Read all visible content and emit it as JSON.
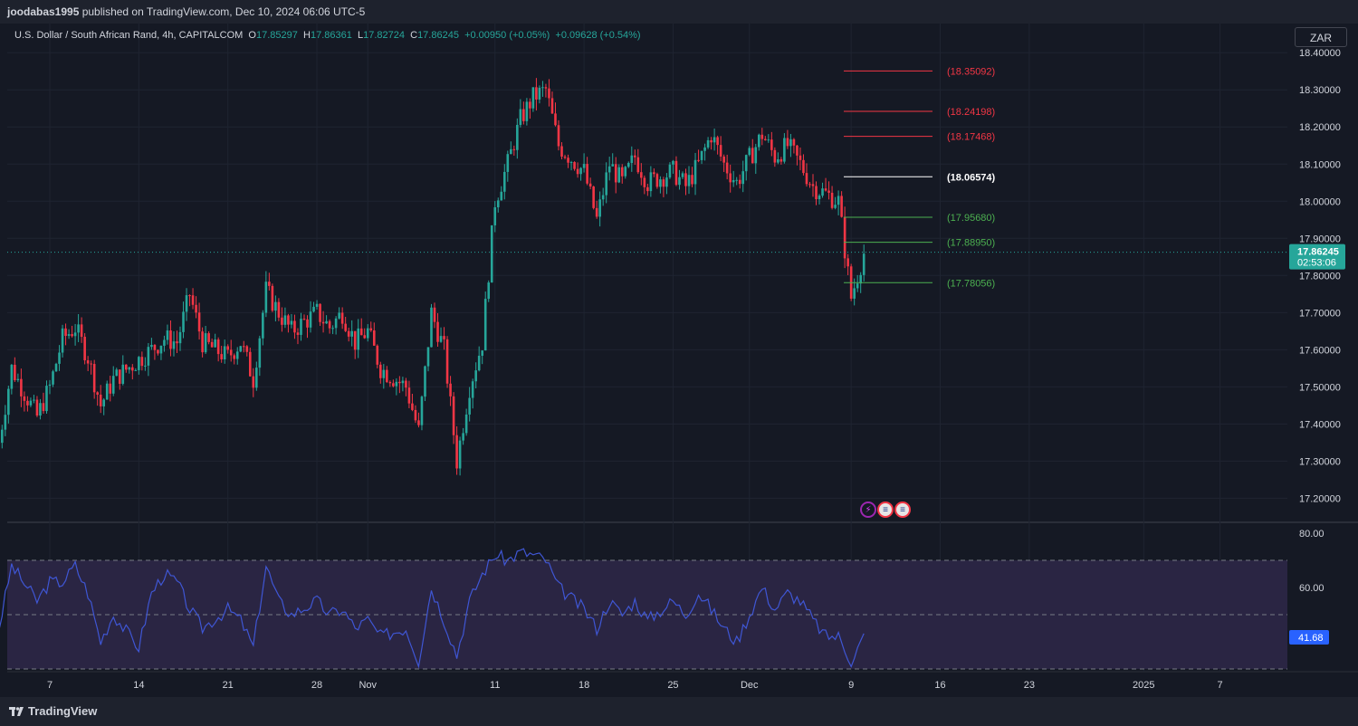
{
  "header": {
    "publisher": "joodabas1995",
    "published_text": " published on TradingView.com, Dec 10, 2024 06:06 UTC-5"
  },
  "legend": {
    "symbol": "U.S. Dollar / South African Rand, 4h, CAPITALCOM",
    "o_label": "O",
    "o_value": "17.85297",
    "h_label": "H",
    "h_value": "17.86361",
    "l_label": "L",
    "l_value": "17.82724",
    "c_label": "C",
    "c_value": "17.86245",
    "change": "+0.00950 (+0.05%)",
    "change_day": "+0.09628 (+0.54%)"
  },
  "currency_button": "ZAR",
  "footer": {
    "brand": "TradingView"
  },
  "colors": {
    "background": "#151924",
    "up": "#26a69a",
    "down": "#f23645",
    "rsi_line": "#3f56d4",
    "rsi_band": "#2a2543",
    "resistance": "#f23645",
    "support": "#4caf50",
    "pivot": "#ffffff",
    "price_tag": "#26a69a"
  },
  "chart_data": [
    {
      "type": "candlestick",
      "title": "U.S. Dollar / South African Rand, 4h, CAPITALCOM",
      "ylim": [
        17.14,
        18.42
      ],
      "y_ticks": [
        "18.40000",
        "18.30000",
        "18.20000",
        "18.10000",
        "18.00000",
        "17.90000",
        "17.80000",
        "17.70000",
        "17.60000",
        "17.50000",
        "17.40000",
        "17.30000",
        "17.20000"
      ],
      "x_ticks": [
        "7",
        "14",
        "21",
        "28",
        "Nov",
        "11",
        "18",
        "25",
        "Dec",
        "9",
        "16",
        "23",
        "2025",
        "7"
      ],
      "current_price": {
        "value": 17.86245,
        "label": "17.86245",
        "countdown": "02:53:06"
      },
      "levels": [
        {
          "value": 18.35092,
          "label": "(18.35092)",
          "kind": "resistance"
        },
        {
          "value": 18.24198,
          "label": "(18.24198)",
          "kind": "resistance"
        },
        {
          "value": 18.17468,
          "label": "(18.17468)",
          "kind": "resistance"
        },
        {
          "value": 18.06574,
          "label": "(18.06574)",
          "kind": "pivot"
        },
        {
          "value": 17.9568,
          "label": "(17.95680)",
          "kind": "support"
        },
        {
          "value": 17.8895,
          "label": "(17.88950)",
          "kind": "support"
        },
        {
          "value": 17.78056,
          "label": "(17.78056)",
          "kind": "support"
        }
      ],
      "price_path": [
        [
          "Oct 3",
          17.35
        ],
        [
          "Oct 4",
          17.55
        ],
        [
          "Oct 6",
          17.42
        ],
        [
          "Oct 7",
          17.5
        ],
        [
          "Oct 8",
          17.63
        ],
        [
          "Oct 9",
          17.66
        ],
        [
          "Oct 10",
          17.58
        ],
        [
          "Oct 11",
          17.45
        ],
        [
          "Oct 12",
          17.52
        ],
        [
          "Oct 15",
          17.6
        ],
        [
          "Oct 16",
          17.63
        ],
        [
          "Oct 17",
          17.62
        ],
        [
          "Oct 18",
          17.75
        ],
        [
          "Oct 19",
          17.62
        ],
        [
          "Oct 21",
          17.58
        ],
        [
          "Oct 22",
          17.62
        ],
        [
          "Oct 23",
          17.52
        ],
        [
          "Oct 24",
          17.76
        ],
        [
          "Oct 25",
          17.7
        ],
        [
          "Oct 26",
          17.65
        ],
        [
          "Oct 28",
          17.7
        ],
        [
          "Oct 29",
          17.66
        ],
        [
          "Oct 30",
          17.7
        ],
        [
          "Oct 31",
          17.62
        ],
        [
          "Nov 1",
          17.65
        ],
        [
          "Nov 2",
          17.55
        ],
        [
          "Nov 4",
          17.5
        ],
        [
          "Nov 5",
          17.38
        ],
        [
          "Nov 6",
          17.7
        ],
        [
          "Nov 7",
          17.6
        ],
        [
          "Nov 8",
          17.3
        ],
        [
          "Nov 9",
          17.5
        ],
        [
          "Nov 10",
          17.62
        ],
        [
          "Nov 11",
          18.0
        ],
        [
          "Nov 12",
          18.1
        ],
        [
          "Nov 13",
          18.22
        ],
        [
          "Nov 14",
          18.28
        ],
        [
          "Nov 15",
          18.3
        ],
        [
          "Nov 16",
          18.15
        ],
        [
          "Nov 18",
          18.08
        ],
        [
          "Nov 19",
          17.95
        ],
        [
          "Nov 20",
          18.1
        ],
        [
          "Nov 21",
          18.05
        ],
        [
          "Nov 22",
          18.12
        ],
        [
          "Nov 23",
          18.05
        ],
        [
          "Nov 25",
          18.08
        ],
        [
          "Nov 26",
          18.04
        ],
        [
          "Nov 27",
          18.1
        ],
        [
          "Nov 28",
          18.18
        ],
        [
          "Nov 29",
          18.1
        ],
        [
          "Nov 30",
          18.05
        ],
        [
          "Dec 2",
          18.18
        ],
        [
          "Dec 3",
          18.12
        ],
        [
          "Dec 4",
          18.15
        ],
        [
          "Dec 5",
          18.1
        ],
        [
          "Dec 6",
          18.04
        ],
        [
          "Dec 8",
          18.0
        ],
        [
          "Dec 9",
          17.74
        ],
        [
          "Dec 10",
          17.86
        ]
      ]
    },
    {
      "type": "line",
      "title": "",
      "ylim": [
        29,
        83
      ],
      "y_ticks": [
        "80.00",
        "60.00"
      ],
      "band_levels": [
        70,
        50,
        30
      ],
      "current_value": 41.68,
      "current_label": "41.68",
      "rsi_path": [
        [
          "Oct 3",
          45
        ],
        [
          "Oct 4",
          68
        ],
        [
          "Oct 6",
          55
        ],
        [
          "Oct 7",
          62
        ],
        [
          "Oct 8",
          62
        ],
        [
          "Oct 9",
          68
        ],
        [
          "Oct 10",
          58
        ],
        [
          "Oct 11",
          40
        ],
        [
          "Oct 12",
          50
        ],
        [
          "Oct 14",
          38
        ],
        [
          "Oct 15",
          58
        ],
        [
          "Oct 16",
          65
        ],
        [
          "Oct 17",
          62
        ],
        [
          "Oct 18",
          52
        ],
        [
          "Oct 19",
          45
        ],
        [
          "Oct 21",
          52
        ],
        [
          "Oct 22",
          48
        ],
        [
          "Oct 23",
          38
        ],
        [
          "Oct 24",
          68
        ],
        [
          "Oct 25",
          55
        ],
        [
          "Oct 26",
          50
        ],
        [
          "Oct 28",
          55
        ],
        [
          "Oct 29",
          50
        ],
        [
          "Oct 30",
          52
        ],
        [
          "Oct 31",
          45
        ],
        [
          "Nov 1",
          48
        ],
        [
          "Nov 2",
          42
        ],
        [
          "Nov 4",
          45
        ],
        [
          "Nov 5",
          33
        ],
        [
          "Nov 6",
          60
        ],
        [
          "Nov 7",
          48
        ],
        [
          "Nov 8",
          35
        ],
        [
          "Nov 9",
          55
        ],
        [
          "Nov 10",
          65
        ],
        [
          "Nov 11",
          72
        ],
        [
          "Nov 12",
          70
        ],
        [
          "Nov 13",
          73
        ],
        [
          "Nov 14",
          72
        ],
        [
          "Nov 15",
          70
        ],
        [
          "Nov 16",
          60
        ],
        [
          "Nov 18",
          52
        ],
        [
          "Nov 19",
          45
        ],
        [
          "Nov 20",
          55
        ],
        [
          "Nov 21",
          50
        ],
        [
          "Nov 22",
          55
        ],
        [
          "Nov 23",
          48
        ],
        [
          "Nov 25",
          55
        ],
        [
          "Nov 26",
          50
        ],
        [
          "Nov 27",
          58
        ],
        [
          "Nov 28",
          52
        ],
        [
          "Nov 29",
          45
        ],
        [
          "Nov 30",
          40
        ],
        [
          "Dec 2",
          60
        ],
        [
          "Dec 3",
          52
        ],
        [
          "Dec 4",
          58
        ],
        [
          "Dec 5",
          55
        ],
        [
          "Dec 6",
          48
        ],
        [
          "Dec 7",
          42
        ],
        [
          "Dec 8",
          42
        ],
        [
          "Dec 9",
          33
        ],
        [
          "Dec 10",
          42
        ]
      ]
    }
  ]
}
